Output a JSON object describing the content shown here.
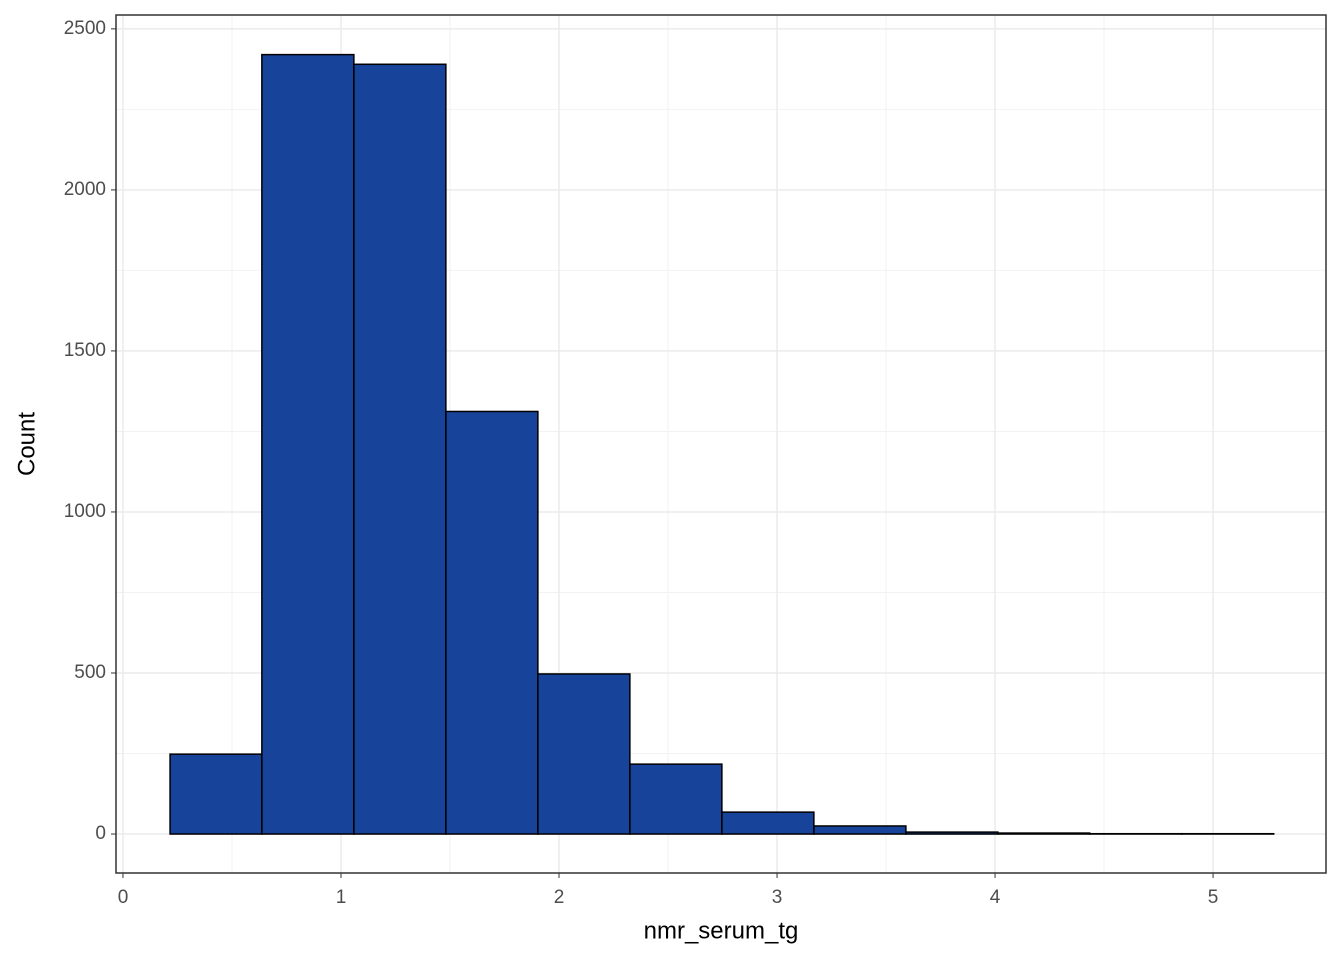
{
  "chart_data": {
    "type": "histogram",
    "x_label": "nmr_serum_tg",
    "y_label": "Count",
    "bins": [
      0.216,
      0.637,
      1.059,
      1.481,
      1.903,
      2.325,
      2.747,
      3.169,
      3.591,
      4.013,
      4.434,
      4.856,
      5.278
    ],
    "counts": [
      248,
      2420,
      2390,
      1312,
      497,
      217,
      68,
      25,
      6,
      3,
      1,
      1
    ],
    "color": "#18439a",
    "edge_color": "#000000",
    "xlim": [
      -0.032,
      5.518
    ],
    "xticks": [
      0,
      1,
      2,
      3,
      4,
      5
    ],
    "ylim": [
      -121,
      2543
    ],
    "yticks": [
      0,
      500,
      1000,
      1500,
      2000,
      2500
    ],
    "grid": true,
    "minor_grid": true
  }
}
